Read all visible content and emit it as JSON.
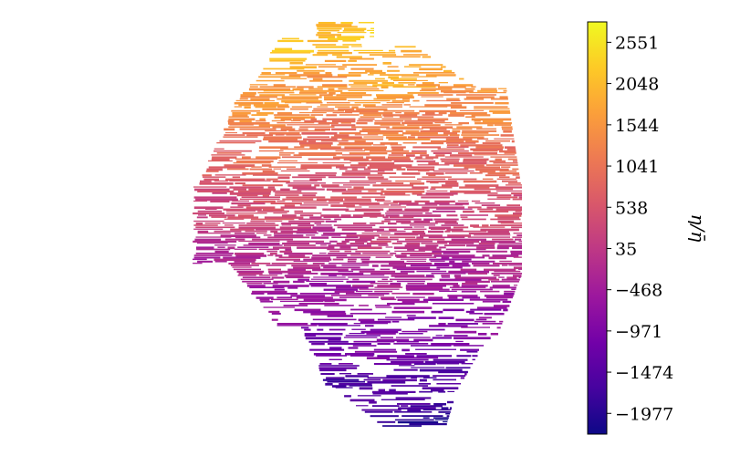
{
  "chart_data": {
    "type": "heatmap",
    "title": "",
    "colorbar": {
      "label": "η/η̄",
      "ticks": [
        -1977,
        -1474,
        -971,
        -468,
        35,
        538,
        1041,
        1544,
        2048,
        2551
      ],
      "tick_labels": [
        "−1977",
        "−1474",
        "−971",
        "−468",
        "35",
        "538",
        "1041",
        "1544",
        "2048",
        "2551"
      ],
      "range": [
        -2230,
        2800
      ],
      "colormap": "plasma"
    },
    "axes_visible": false,
    "field_value_range": [
      -1977,
      2300
    ]
  },
  "colors": {
    "cmap_stops": [
      "#0d0887",
      "#46039f",
      "#7201a8",
      "#9c179e",
      "#bd3786",
      "#d8576b",
      "#ed7953",
      "#fb9f3a",
      "#fdca26",
      "#f0f921"
    ]
  }
}
